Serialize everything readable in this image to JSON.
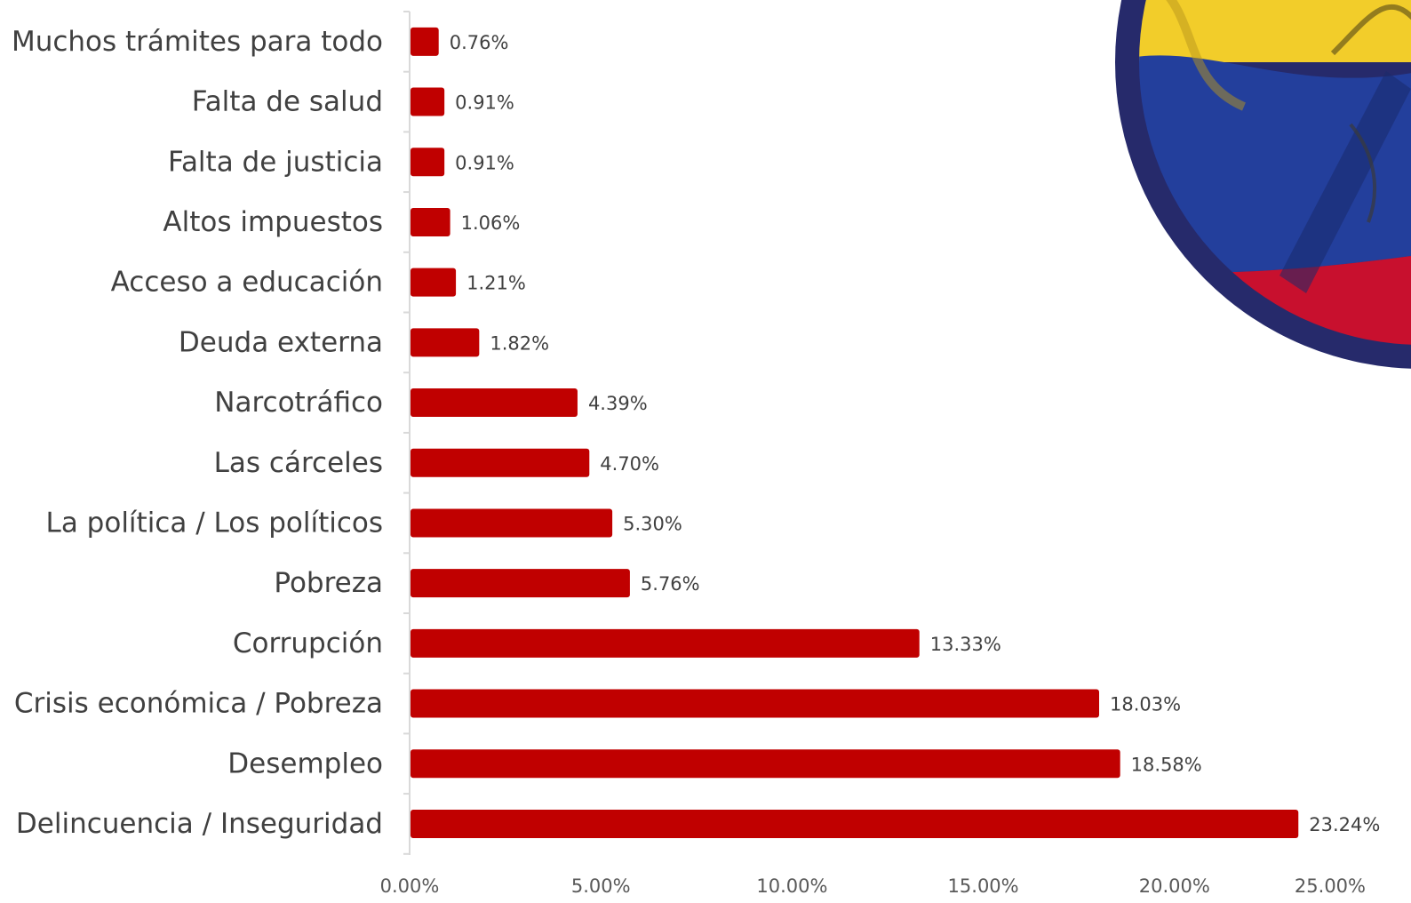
{
  "colors": {
    "bar": "#c00000",
    "text": "#404040",
    "axis": "#d9d9d9",
    "emblem_ring": "#262a6b",
    "flag_yellow": "#f2cd2a",
    "flag_blue": "#233f9c",
    "flag_red": "#c8102e"
  },
  "emblem": {
    "icon": "ecuador-flag-emblem"
  },
  "chart_data": {
    "type": "bar",
    "orientation": "horizontal",
    "title": "",
    "xlabel": "",
    "ylabel": "",
    "categories": [
      "Muchos trámites para todo",
      "Falta de salud",
      "Falta de justicia",
      "Altos impuestos",
      "Acceso a educación",
      "Deuda externa",
      "Narcotráfico",
      "Las cárceles",
      "La política / Los políticos",
      "Pobreza",
      "Corrupción",
      "Crisis económica / Pobreza",
      "Desempleo",
      "Delincuencia / Inseguridad"
    ],
    "values": [
      0.76,
      0.91,
      0.91,
      1.06,
      1.21,
      1.82,
      4.39,
      4.7,
      5.3,
      5.76,
      13.33,
      18.03,
      18.58,
      23.24
    ],
    "value_labels": [
      "0.76%",
      "0.91%",
      "0.91%",
      "1.06%",
      "1.21%",
      "1.82%",
      "4.39%",
      "4.70%",
      "5.30%",
      "5.76%",
      "13.33%",
      "18.03%",
      "18.58%",
      "23.24%"
    ],
    "xlim": [
      0,
      25
    ],
    "x_ticks": [
      0,
      5,
      10,
      15,
      20,
      25
    ],
    "x_tick_labels": [
      "0.00%",
      "5.00%",
      "10.00%",
      "15.00%",
      "20.00%",
      "25.00%"
    ],
    "grid": false,
    "legend": "none"
  }
}
